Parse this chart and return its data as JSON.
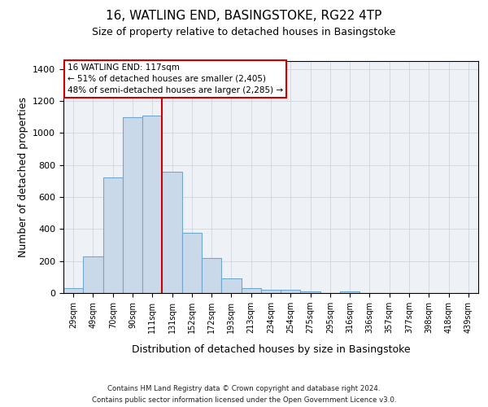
{
  "title": "16, WATLING END, BASINGSTOKE, RG22 4TP",
  "subtitle": "Size of property relative to detached houses in Basingstoke",
  "xlabel": "Distribution of detached houses by size in Basingstoke",
  "ylabel": "Number of detached properties",
  "categories": [
    "29sqm",
    "49sqm",
    "70sqm",
    "90sqm",
    "111sqm",
    "131sqm",
    "152sqm",
    "172sqm",
    "193sqm",
    "213sqm",
    "234sqm",
    "254sqm",
    "275sqm",
    "295sqm",
    "316sqm",
    "336sqm",
    "357sqm",
    "377sqm",
    "398sqm",
    "418sqm",
    "439sqm"
  ],
  "values": [
    30,
    230,
    720,
    1100,
    1110,
    760,
    375,
    220,
    90,
    30,
    20,
    18,
    12,
    0,
    8,
    0,
    0,
    0,
    0,
    0,
    0
  ],
  "bar_color": "#c9d9ea",
  "bar_edge_color": "#6fa8cc",
  "red_line_x": 4.5,
  "annotation_line1": "16 WATLING END: 117sqm",
  "annotation_line2": "← 51% of detached houses are smaller (2,405)",
  "annotation_line3": "48% of semi-detached houses are larger (2,285) →",
  "annotation_box_color": "#ffffff",
  "annotation_box_edge": "#cc0000",
  "red_line_color": "#cc0000",
  "ylim_max": 1450,
  "yticks": [
    0,
    200,
    400,
    600,
    800,
    1000,
    1200,
    1400
  ],
  "grid_color": "#c8d0da",
  "bg_color": "#eef2f7",
  "footer_line1": "Contains HM Land Registry data © Crown copyright and database right 2024.",
  "footer_line2": "Contains public sector information licensed under the Open Government Licence v3.0."
}
